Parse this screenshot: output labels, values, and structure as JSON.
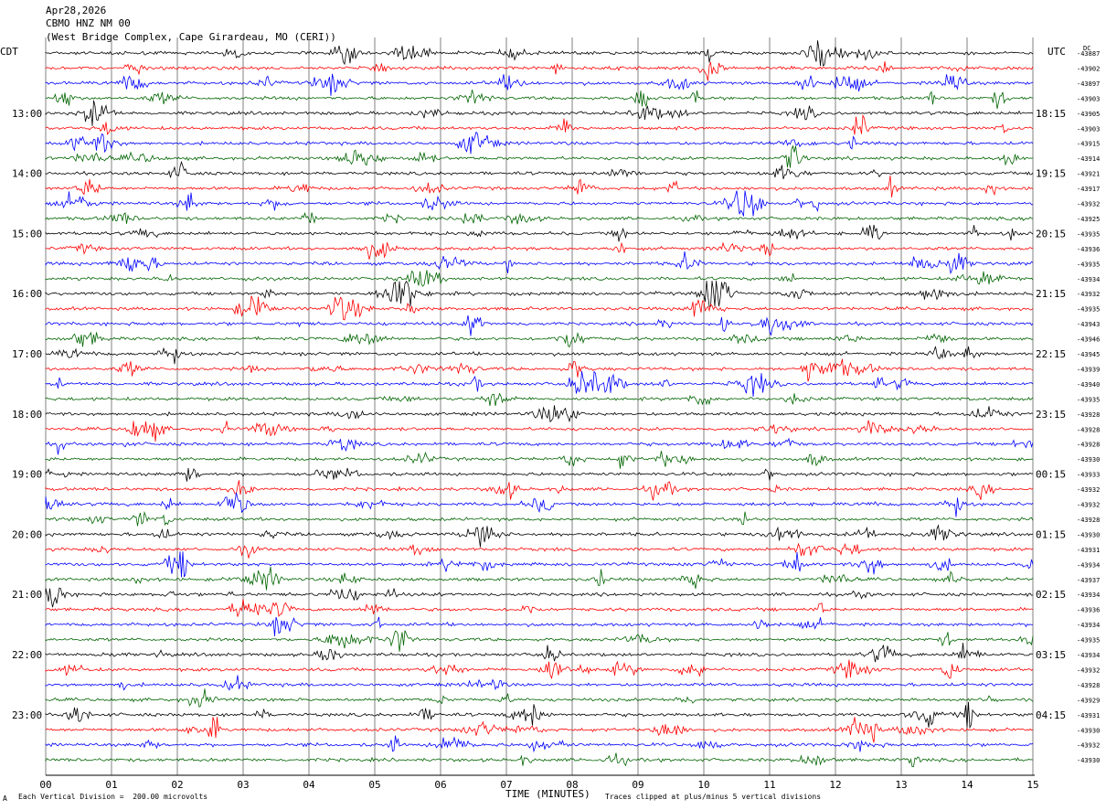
{
  "header": {
    "date": "Apr28,2026",
    "station": "CBMO HNZ NM 00",
    "location": "(West Bridge Complex, Cape Girardeau, MO (CERI))"
  },
  "left_tz": "CDT",
  "right_tz": "UTC",
  "footer": {
    "scale_note": "Each Vertical Division =  200.00 microvolts",
    "clip_note": "Traces clipped at plus/minus 5 vertical divisions",
    "corner_mark": "A"
  },
  "colors": {
    "trace_cycle": [
      "#000000",
      "#ff0000",
      "#0000ff",
      "#006400"
    ],
    "grid": "#808080"
  },
  "chart_data": {
    "type": "line",
    "title": "",
    "xlabel": "TIME (MINUTES)",
    "x_ticks": [
      "00",
      "01",
      "02",
      "03",
      "04",
      "05",
      "06",
      "07",
      "08",
      "09",
      "10",
      "11",
      "12",
      "13",
      "14",
      "15"
    ],
    "xlim": [
      0,
      15
    ],
    "left_hour_labels": [
      "13:00",
      "14:00",
      "15:00",
      "16:00",
      "17:00",
      "18:00",
      "19:00",
      "20:00",
      "21:00",
      "22:00",
      "23:00"
    ],
    "right_hour_labels": [
      "18:15",
      "19:15",
      "20:15",
      "21:15",
      "22:15",
      "23:15",
      "00:15",
      "01:15",
      "02:15",
      "03:15",
      "04:15"
    ],
    "first_right_label": "DC",
    "trace_offsets": [
      "-43887",
      "-43902",
      "-43897",
      "-43903",
      "-43905",
      "-43903",
      "-43915",
      "-43914",
      "-43921",
      "-43917",
      "-43932",
      "-43925",
      "-43935",
      "-43936",
      "-43935",
      "-43934",
      "-43932",
      "-43935",
      "-43943",
      "-43946",
      "-43945",
      "-43939",
      "-43940",
      "-43935",
      "-43928",
      "-43928",
      "-43928",
      "-43930",
      "-43933",
      "-43932",
      "-43932",
      "-43928",
      "-43930",
      "-43931",
      "-43934",
      "-43937",
      "-43934",
      "-43936",
      "-43934",
      "-43935",
      "-43934",
      "-43932",
      "-43928",
      "-43929",
      "-43931",
      "-43930",
      "-43932",
      "-43930"
    ]
  }
}
